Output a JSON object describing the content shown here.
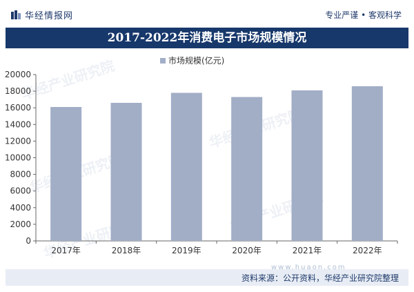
{
  "header": {
    "brand": "华经情报网",
    "slogan": "专业严谨 • 客观科学"
  },
  "watermark": {
    "text": "华经产业研究院",
    "site": "www.huaon.com"
  },
  "footer": {
    "source": "资料来源：公开资料，华经产业研究院整理"
  },
  "colors": {
    "title_bg": "#17386b",
    "bar": "#a2aec6",
    "brand": "#1f3a6b"
  },
  "chart_data": {
    "type": "bar",
    "title": "2017-2022年消费电子市场规模情况",
    "categories": [
      "2017年",
      "2018年",
      "2019年",
      "2020年",
      "2021年",
      "2022年"
    ],
    "series": [
      {
        "name": "市场规模(亿元)",
        "values": [
          16100,
          16600,
          17800,
          17300,
          18100,
          18600
        ]
      }
    ],
    "ylim": [
      0,
      20000
    ],
    "yticks": [
      0,
      2000,
      4000,
      6000,
      8000,
      10000,
      12000,
      14000,
      16000,
      18000,
      20000
    ],
    "legend_position": "top-center",
    "grid": false
  }
}
